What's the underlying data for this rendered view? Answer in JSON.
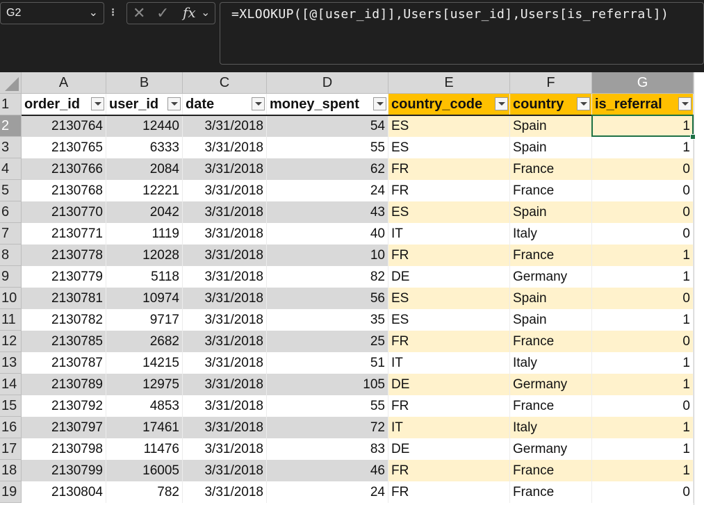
{
  "formula_bar": {
    "name_box": "G2",
    "formula": "=XLOOKUP([@[user_id]],Users[user_id],Users[is_referral])",
    "separator": "⁝",
    "cancel_glyph": "✕",
    "enter_glyph": "✓",
    "fx_glyph": "fx",
    "chevron_glyph": "⌄"
  },
  "columns": [
    "A",
    "B",
    "C",
    "D",
    "E",
    "F",
    "G"
  ],
  "header_row_number": "1",
  "headers": [
    "order_id",
    "user_id",
    "date",
    "money_spent",
    "country_code",
    "country",
    "is_referral"
  ],
  "rows": [
    {
      "row": "2",
      "order_id": "2130764",
      "user_id": "12440",
      "date": "3/31/2018",
      "money_spent": "54",
      "country_code": "ES",
      "country": "Spain",
      "is_referral": "1"
    },
    {
      "row": "3",
      "order_id": "2130765",
      "user_id": "6333",
      "date": "3/31/2018",
      "money_spent": "55",
      "country_code": "ES",
      "country": "Spain",
      "is_referral": "1"
    },
    {
      "row": "4",
      "order_id": "2130766",
      "user_id": "2084",
      "date": "3/31/2018",
      "money_spent": "62",
      "country_code": "FR",
      "country": "France",
      "is_referral": "0"
    },
    {
      "row": "5",
      "order_id": "2130768",
      "user_id": "12221",
      "date": "3/31/2018",
      "money_spent": "24",
      "country_code": "FR",
      "country": "France",
      "is_referral": "0"
    },
    {
      "row": "6",
      "order_id": "2130770",
      "user_id": "2042",
      "date": "3/31/2018",
      "money_spent": "43",
      "country_code": "ES",
      "country": "Spain",
      "is_referral": "0"
    },
    {
      "row": "7",
      "order_id": "2130771",
      "user_id": "1119",
      "date": "3/31/2018",
      "money_spent": "40",
      "country_code": "IT",
      "country": "Italy",
      "is_referral": "0"
    },
    {
      "row": "8",
      "order_id": "2130778",
      "user_id": "12028",
      "date": "3/31/2018",
      "money_spent": "10",
      "country_code": "FR",
      "country": "France",
      "is_referral": "1"
    },
    {
      "row": "9",
      "order_id": "2130779",
      "user_id": "5118",
      "date": "3/31/2018",
      "money_spent": "82",
      "country_code": "DE",
      "country": "Germany",
      "is_referral": "1"
    },
    {
      "row": "10",
      "order_id": "2130781",
      "user_id": "10974",
      "date": "3/31/2018",
      "money_spent": "56",
      "country_code": "ES",
      "country": "Spain",
      "is_referral": "0"
    },
    {
      "row": "11",
      "order_id": "2130782",
      "user_id": "9717",
      "date": "3/31/2018",
      "money_spent": "35",
      "country_code": "ES",
      "country": "Spain",
      "is_referral": "1"
    },
    {
      "row": "12",
      "order_id": "2130785",
      "user_id": "2682",
      "date": "3/31/2018",
      "money_spent": "25",
      "country_code": "FR",
      "country": "France",
      "is_referral": "0"
    },
    {
      "row": "13",
      "order_id": "2130787",
      "user_id": "14215",
      "date": "3/31/2018",
      "money_spent": "51",
      "country_code": "IT",
      "country": "Italy",
      "is_referral": "1"
    },
    {
      "row": "14",
      "order_id": "2130789",
      "user_id": "12975",
      "date": "3/31/2018",
      "money_spent": "105",
      "country_code": "DE",
      "country": "Germany",
      "is_referral": "1"
    },
    {
      "row": "15",
      "order_id": "2130792",
      "user_id": "4853",
      "date": "3/31/2018",
      "money_spent": "55",
      "country_code": "FR",
      "country": "France",
      "is_referral": "0"
    },
    {
      "row": "16",
      "order_id": "2130797",
      "user_id": "17461",
      "date": "3/31/2018",
      "money_spent": "72",
      "country_code": "IT",
      "country": "Italy",
      "is_referral": "1"
    },
    {
      "row": "17",
      "order_id": "2130798",
      "user_id": "11476",
      "date": "3/31/2018",
      "money_spent": "83",
      "country_code": "DE",
      "country": "Germany",
      "is_referral": "1"
    },
    {
      "row": "18",
      "order_id": "2130799",
      "user_id": "16005",
      "date": "3/31/2018",
      "money_spent": "46",
      "country_code": "FR",
      "country": "France",
      "is_referral": "1"
    },
    {
      "row": "19",
      "order_id": "2130804",
      "user_id": "782",
      "date": "3/31/2018",
      "money_spent": "24",
      "country_code": "FR",
      "country": "France",
      "is_referral": "0"
    }
  ],
  "colors": {
    "band_gray": "#d9d9d9",
    "band_yellow": "#fff2cc",
    "header_yellow": "#ffc000",
    "active_border": "#1e7145"
  }
}
